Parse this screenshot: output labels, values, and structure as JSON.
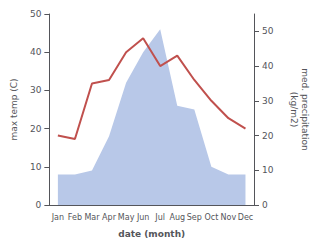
{
  "chart_data": {
    "type": "line",
    "xlabel": "date (month)",
    "ylabel": "max temp (C)",
    "y2label": "med. precipitation\n(kg/m2)",
    "categories": [
      "Jan",
      "Feb",
      "Mar",
      "Apr",
      "May",
      "Jun",
      "Jul",
      "Aug",
      "Sep",
      "Oct",
      "Nov",
      "Dec"
    ],
    "series": [
      {
        "type": "area",
        "color": "#b8c8e8",
        "values": [
          8,
          8,
          9,
          18,
          32,
          40,
          46,
          26,
          25,
          10,
          8,
          8
        ]
      },
      {
        "type": "line",
        "color": "#c0504d",
        "axis": "y2",
        "values": [
          20,
          19,
          35,
          36,
          44,
          48,
          40,
          43,
          36,
          30,
          25,
          22
        ]
      }
    ],
    "ylim": [
      0,
      50
    ],
    "yticks": [
      0,
      10,
      20,
      30,
      40,
      50
    ],
    "y2lim": [
      0,
      55
    ],
    "y2ticks": [
      0,
      10,
      20,
      30,
      40,
      50
    ],
    "grid": false
  }
}
